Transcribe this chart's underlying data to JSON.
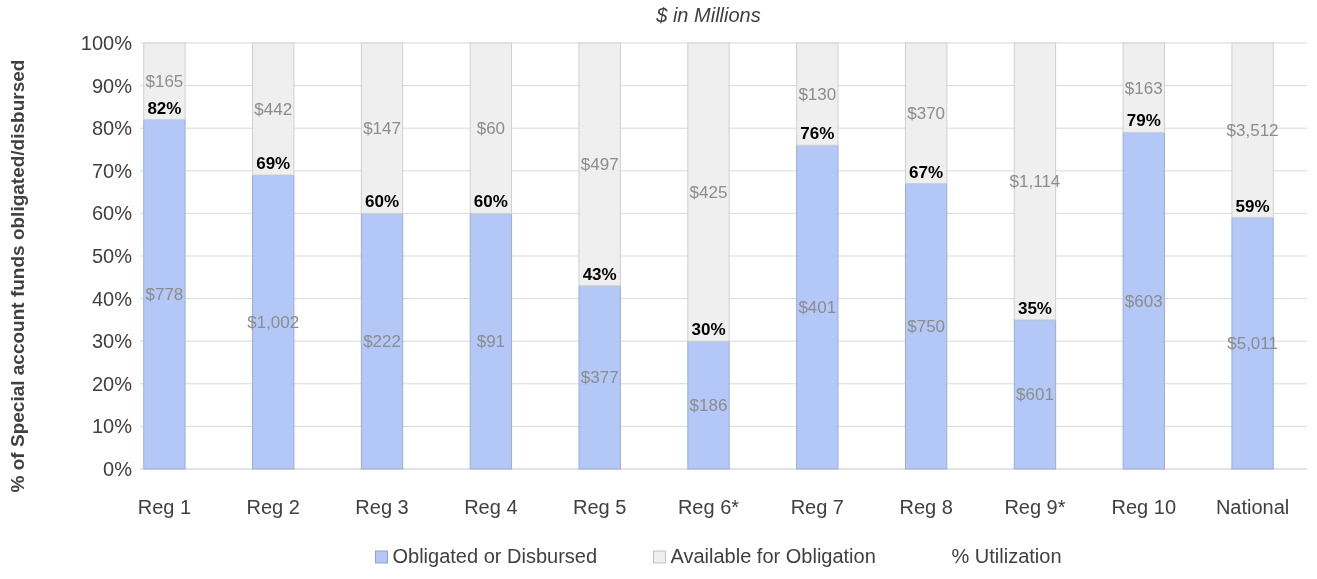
{
  "chart_data": {
    "type": "bar",
    "stacked": true,
    "title": "$ in Millions",
    "ylabel": "% of Special account funds obligated/disbursed",
    "categories": [
      "Reg 1",
      "Reg 2",
      "Reg 3",
      "Reg 4",
      "Reg 5",
      "Reg 6*",
      "Reg 7",
      "Reg 8",
      "Reg 9*",
      "Reg 10",
      "National"
    ],
    "series": [
      {
        "name": "Obligated or Disbursed",
        "color": "#b4c8f7",
        "values": [
          82,
          69,
          60,
          60,
          43,
          30,
          76,
          67,
          35,
          79,
          59
        ],
        "value_labels": [
          "82%",
          "69%",
          "60%",
          "60%",
          "43%",
          "30%",
          "76%",
          "67%",
          "35%",
          "79%",
          "59%"
        ]
      },
      {
        "name": "Available for Obligation",
        "color": "#efefef",
        "values": [
          18,
          31,
          40,
          40,
          57,
          70,
          24,
          33,
          65,
          21,
          41
        ]
      }
    ],
    "annotations": [
      "$778",
      "$1,002",
      "$222",
      "$91",
      "$377",
      "$186",
      "$401",
      "$750",
      "$601",
      "$603",
      "$5,011",
      "$165",
      "$442",
      "$147",
      "$60",
      "$497",
      "$425",
      "$130",
      "$370",
      "$1,114",
      "$163",
      "$3,512",
      "% Utilization"
    ],
    "ylim": [
      0,
      100
    ],
    "yticks": [
      {
        "value": 0,
        "label": "0%"
      },
      {
        "value": 10,
        "label": "10%"
      },
      {
        "value": 20,
        "label": "20%"
      },
      {
        "value": 30,
        "label": "30%"
      },
      {
        "value": 40,
        "label": "40%"
      },
      {
        "value": 50,
        "label": "50%"
      },
      {
        "value": 60,
        "label": "60%"
      },
      {
        "value": 70,
        "label": "70%"
      },
      {
        "value": 80,
        "label": "80%"
      },
      {
        "value": 90,
        "label": "90%"
      },
      {
        "value": 100,
        "label": "100%"
      }
    ],
    "grid": "y",
    "legend": "bottom"
  }
}
